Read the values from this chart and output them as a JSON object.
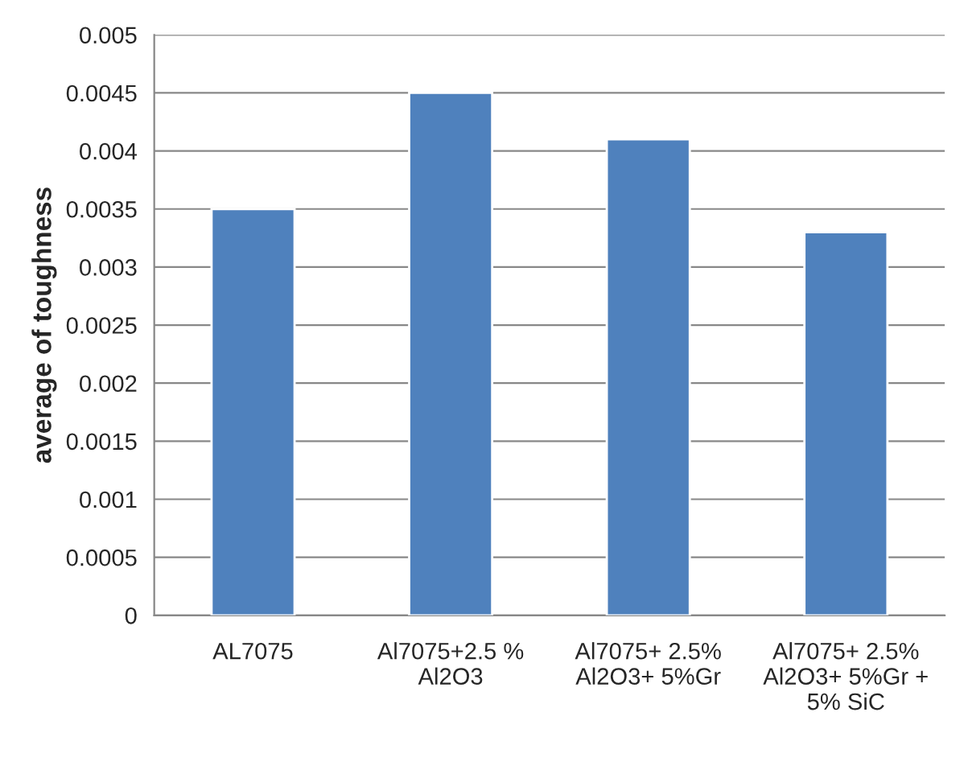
{
  "chart_data": {
    "type": "bar",
    "ylabel": "average of toughness",
    "categories": [
      "AL7075",
      "Al7075+2.5 %\nAl2O3",
      "Al7075+ 2.5%\nAl2O3+ 5%Gr",
      "Al7075+ 2.5%\nAl2O3+ 5%Gr +\n5% SiC"
    ],
    "values": [
      0.0035,
      0.0045,
      0.0041,
      0.0033
    ],
    "color": "#4f81bd",
    "ylim": [
      0,
      0.005
    ],
    "yticks": [
      0,
      0.0005,
      0.001,
      0.0015,
      0.002,
      0.0025,
      0.003,
      0.0035,
      0.004,
      0.0045,
      0.005
    ],
    "grid": "y",
    "legend": false
  }
}
